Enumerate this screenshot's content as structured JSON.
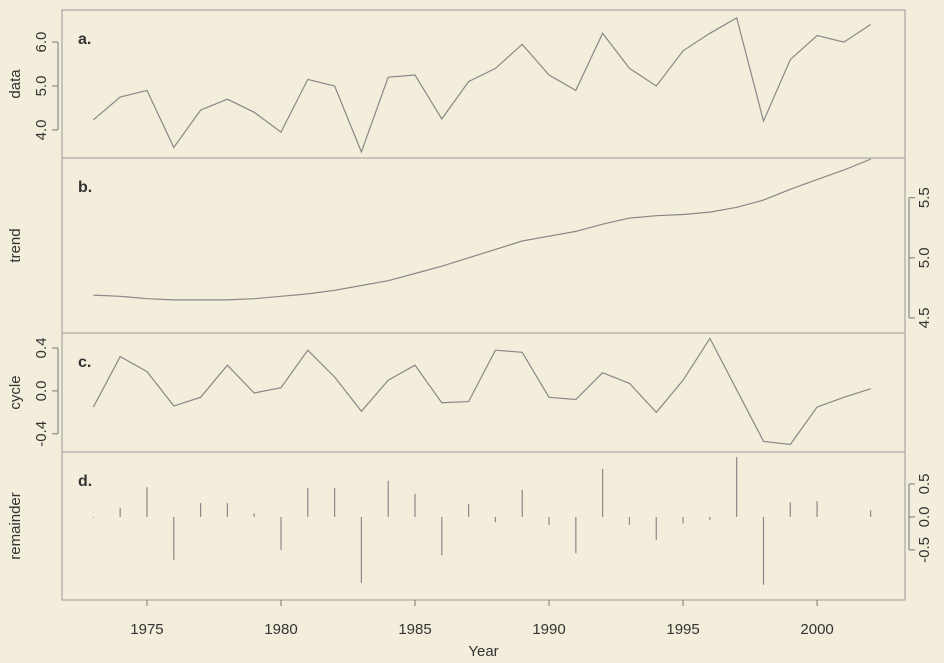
{
  "chart_data": [
    {
      "type": "line",
      "ylabel": "data",
      "annotation": "a.",
      "y_axis": "left",
      "color": "#888888",
      "x": [
        1973,
        1974,
        1975,
        1976,
        1977,
        1978,
        1979,
        1980,
        1981,
        1982,
        1983,
        1984,
        1985,
        1986,
        1987,
        1988,
        1989,
        1990,
        1991,
        1992,
        1993,
        1994,
        1995,
        1996,
        1997,
        1998,
        1999,
        2000,
        2001,
        2002
      ],
      "values": [
        4.23,
        4.75,
        4.9,
        3.6,
        4.45,
        4.7,
        4.4,
        3.95,
        5.15,
        5.0,
        3.5,
        5.2,
        5.25,
        4.25,
        5.1,
        5.4,
        5.95,
        5.25,
        4.9,
        6.2,
        5.4,
        5.0,
        5.8,
        6.2,
        6.55,
        4.2,
        5.6,
        6.15,
        6.0,
        6.4
      ],
      "xlim": [
        1971.83,
        2003.28
      ],
      "ylim": [
        3.36,
        6.73
      ],
      "yticks": [
        {
          "value": 4,
          "label": "4.0"
        },
        {
          "value": 5,
          "label": "5.0"
        },
        {
          "value": 6,
          "label": "6.0"
        }
      ]
    },
    {
      "type": "line",
      "ylabel": "trend",
      "annotation": "b.",
      "y_axis": "right",
      "color": "#888888",
      "x": [
        1973,
        1974,
        1975,
        1976,
        1977,
        1978,
        1979,
        1980,
        1981,
        1982,
        1983,
        1984,
        1985,
        1986,
        1987,
        1988,
        1989,
        1990,
        1991,
        1992,
        1993,
        1994,
        1995,
        1996,
        1997,
        1998,
        1999,
        2000,
        2001,
        2002
      ],
      "values": [
        4.69,
        4.68,
        4.66,
        4.65,
        4.65,
        4.65,
        4.66,
        4.68,
        4.7,
        4.73,
        4.77,
        4.81,
        4.87,
        4.93,
        5.0,
        5.07,
        5.14,
        5.18,
        5.22,
        5.28,
        5.33,
        5.35,
        5.36,
        5.38,
        5.42,
        5.48,
        5.57,
        5.65,
        5.73,
        5.82
      ],
      "xlim": [
        1971.83,
        2003.28
      ],
      "ylim": [
        4.375,
        5.83
      ],
      "yticks": [
        4.5,
        {
          "value": 5,
          "label": "5.0"
        },
        5.5
      ]
    },
    {
      "type": "line",
      "ylabel": "cycle",
      "annotation": "c.",
      "y_axis": "left",
      "color": "#888888",
      "x": [
        1973,
        1974,
        1975,
        1976,
        1977,
        1978,
        1979,
        1980,
        1981,
        1982,
        1983,
        1984,
        1985,
        1986,
        1987,
        1988,
        1989,
        1990,
        1991,
        1992,
        1993,
        1994,
        1995,
        1996,
        1997,
        1998,
        1999,
        2000,
        2001,
        2002
      ],
      "values": [
        -0.15,
        0.32,
        0.18,
        -0.14,
        -0.06,
        0.24,
        -0.02,
        0.03,
        0.38,
        0.13,
        -0.19,
        0.1,
        0.24,
        -0.11,
        -0.1,
        0.38,
        0.36,
        -0.06,
        -0.08,
        0.17,
        0.07,
        -0.2,
        0.1,
        0.49,
        0.01,
        -0.47,
        -0.5,
        -0.15,
        -0.06,
        0.02
      ],
      "xlim": [
        1971.83,
        2003.28
      ],
      "ylim": [
        -0.57,
        0.54
      ],
      "yticks": [
        -0.4,
        {
          "value": 0,
          "label": "0.0"
        },
        0.4
      ]
    },
    {
      "type": "bar",
      "ylabel": "remainder",
      "annotation": "d.",
      "y_axis": "right",
      "color": "#888888",
      "x": [
        1973,
        1974,
        1975,
        1976,
        1977,
        1978,
        1979,
        1980,
        1981,
        1982,
        1983,
        1984,
        1985,
        1986,
        1987,
        1988,
        1989,
        1990,
        1991,
        1992,
        1993,
        1994,
        1995,
        1996,
        1997,
        1998,
        1999,
        2000,
        2001,
        2002
      ],
      "values": [
        -0.01,
        0.14,
        0.45,
        -0.65,
        0.21,
        0.21,
        0.05,
        -0.5,
        0.44,
        0.44,
        -1.0,
        0.55,
        0.35,
        -0.58,
        0.2,
        -0.08,
        0.41,
        -0.12,
        -0.55,
        0.73,
        -0.12,
        -0.35,
        -0.1,
        -0.05,
        0.91,
        -1.03,
        0.22,
        0.24,
        0.0,
        0.1
      ],
      "xlim": [
        1971.83,
        2003.28
      ],
      "ylim": [
        -1.26,
        0.985
      ],
      "yticks": [
        -0.5,
        {
          "value": 0,
          "label": "0.0"
        },
        0.5
      ],
      "xticks": [
        1975,
        1980,
        1985,
        1990,
        1995,
        2000
      ],
      "xlabel": "Year"
    }
  ]
}
